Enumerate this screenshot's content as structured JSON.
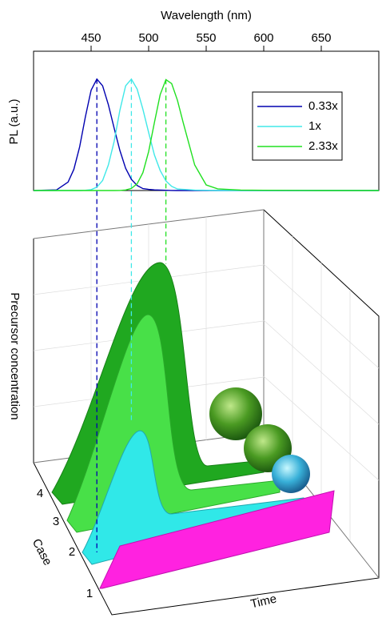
{
  "chart_data": [
    {
      "type": "line",
      "x_label": "Wavelength (nm)",
      "y_label": "PL (a.u.)",
      "x": [
        400,
        420,
        430,
        435,
        440,
        445,
        450,
        455,
        460,
        465,
        470,
        475,
        480,
        485,
        490,
        495,
        500,
        505,
        510,
        515,
        520,
        525,
        530,
        540,
        550,
        560,
        580,
        600,
        650,
        700
      ],
      "series": [
        {
          "name": "0.33x",
          "color": "#0000b0",
          "values": [
            0,
            0.006,
            0.076,
            0.19,
            0.39,
            0.66,
            0.9,
            1,
            0.94,
            0.77,
            0.56,
            0.36,
            0.2,
            0.1,
            0.045,
            0.017,
            0.01,
            0.006,
            0.004,
            0.002,
            0.001,
            0,
            0,
            0,
            0,
            0,
            0,
            0,
            0,
            0
          ]
        },
        {
          "name": "1x",
          "color": "#40e8e8",
          "values": [
            0,
            0,
            0,
            0,
            0,
            0.002,
            0.008,
            0.03,
            0.09,
            0.23,
            0.44,
            0.72,
            0.94,
            1,
            0.91,
            0.73,
            0.52,
            0.32,
            0.18,
            0.086,
            0.037,
            0.014,
            0.01,
            0.004,
            0.002,
            0,
            0,
            0,
            0,
            0
          ]
        },
        {
          "name": "2.33x",
          "color": "#20e020",
          "values": [
            0,
            0,
            0,
            0,
            0,
            0,
            0,
            0,
            0,
            0,
            0,
            0.001,
            0.005,
            0.019,
            0.06,
            0.16,
            0.35,
            0.61,
            0.86,
            0.996,
            0.96,
            0.81,
            0.61,
            0.23,
            0.05,
            0.015,
            0.004,
            0.002,
            0,
            0
          ]
        }
      ],
      "xlim": [
        400,
        700
      ],
      "xticks": [
        450,
        500,
        550,
        600,
        650
      ],
      "ylim": [
        0,
        1.25
      ],
      "legend": "upper right"
    },
    {
      "type": "illustration",
      "y_label": "Precursor concentration",
      "z_label": "Case",
      "x_label": "Time",
      "categories": [
        "1",
        "2",
        "3",
        "4"
      ],
      "colors": [
        "#ff22e0",
        "#30e8e8",
        "#48e048",
        "#20a820"
      ]
    }
  ]
}
